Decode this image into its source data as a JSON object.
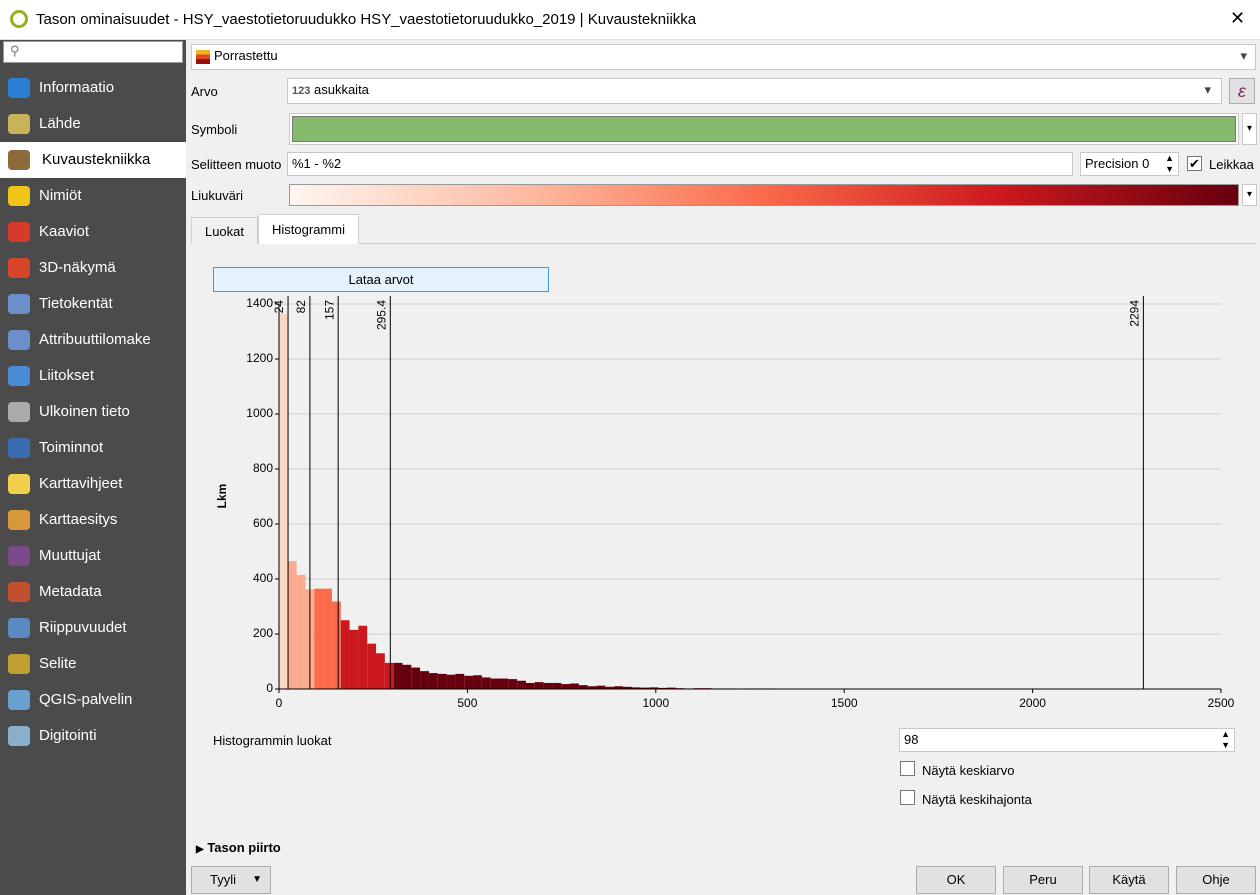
{
  "window_title": "Tason ominaisuudet - HSY_vaestotietoruudukko HSY_vaestotietoruudukko_2019 | Kuvaustekniikka",
  "sidebar": {
    "items": [
      "Informaatio",
      "Lähde",
      "Kuvaustekniikka",
      "Nimiöt",
      "Kaaviot",
      "3D-näkymä",
      "Tietokentät",
      "Attribuuttilomake",
      "Liitokset",
      "Ulkoinen tieto",
      "Toiminnot",
      "Karttavihjeet",
      "Karttaesitys",
      "Muuttujat",
      "Metadata",
      "Riippuvuudet",
      "Selite",
      "QGIS-palvelin",
      "Digitointi"
    ],
    "selected": 2
  },
  "renderer": "Porrastettu",
  "value_label": "Arvo",
  "value_field_type": "123",
  "value_field": "asukkaita",
  "symbol_label": "Symboli",
  "symbol_color": "#86bb6e",
  "legend_format_label": "Selitteen muoto",
  "legend_format": "%1 - %2",
  "precision": "Precision 0",
  "trim_label": "Leikkaa",
  "trim_checked": true,
  "ramp_label": "Liukuväri",
  "ramp_colors": [
    "#fff5f0",
    "#fcbba1",
    "#fb6a4a",
    "#cb181d",
    "#67000d"
  ],
  "tabs": {
    "items": [
      "Luokat",
      "Histogrammi"
    ],
    "active": 1
  },
  "load_button": "Lataa arvot",
  "chart_data": {
    "type": "histogram",
    "y_label": "Lkm",
    "bins": [
      0,
      23.4,
      46.8,
      70.2,
      93.6,
      117.0,
      140.4,
      163.9,
      187.3,
      210.7,
      234.1,
      257.5,
      280.9,
      304.3,
      327.7,
      351.1,
      374.5,
      397.9,
      421.3,
      444.8,
      468.2,
      491.6,
      515.0,
      538.4,
      561.8,
      585.2,
      608.6,
      632.0,
      655.4,
      678.8,
      702.2,
      725.6,
      749.1,
      772.5,
      795.9,
      819.3,
      842.7,
      866.1,
      889.5,
      912.9,
      936.3,
      959.7,
      983.1,
      1006.5,
      1029.9,
      1053.4,
      1076.8,
      1100.2,
      1123.6,
      1147.0,
      1170.4,
      1193.8,
      1217.2,
      1240.6,
      1264.0,
      1287.4,
      1310.8,
      1334.2,
      1357.7,
      1381.1,
      1404.5,
      1427.9,
      1451.3,
      1474.7,
      1498.1,
      1521.5,
      1544.9,
      1568.3,
      1591.7,
      1615.1,
      1638.6,
      1662.0,
      1685.4,
      1708.8,
      1732.2,
      1755.6,
      1779.0,
      1802.4,
      1825.8,
      1849.2,
      1872.6,
      1896.0,
      1919.4,
      1942.8,
      1966.3,
      1989.7,
      2013.1,
      2036.5,
      2059.9,
      2083.3,
      2106.7,
      2130.1,
      2153.5,
      2176.9,
      2200.3,
      2223.7,
      2247.1,
      2270.5,
      2294
    ],
    "values": [
      1365,
      465,
      415,
      362,
      365,
      365,
      318,
      250,
      215,
      230,
      165,
      130,
      95,
      95,
      88,
      78,
      65,
      58,
      55,
      52,
      55,
      48,
      50,
      42,
      38,
      38,
      36,
      30,
      22,
      25,
      22,
      22,
      18,
      20,
      14,
      10,
      12,
      8,
      10,
      8,
      6,
      5,
      6,
      4,
      5,
      3,
      2,
      3,
      3,
      2,
      2,
      2,
      1,
      2,
      2,
      2,
      1,
      1,
      1,
      0,
      0,
      1,
      0,
      0,
      1,
      0,
      0,
      0,
      1,
      0,
      1,
      0,
      0,
      1,
      0,
      1,
      0,
      0,
      0,
      0,
      1,
      0,
      1,
      0,
      0,
      1,
      0,
      0,
      0,
      1,
      1,
      0,
      0,
      1,
      0,
      0,
      0,
      1
    ],
    "xlim": [
      0,
      2500
    ],
    "xticks": [
      0,
      500,
      1000,
      1500,
      2000,
      2500
    ],
    "ylim": [
      0,
      1400
    ],
    "yticks": [
      0,
      200,
      400,
      600,
      800,
      1000,
      1200,
      1400
    ],
    "grid": true,
    "class_breaks": [
      24,
      82,
      157,
      295.4,
      2294
    ],
    "class_colors": [
      "#fcd5c4",
      "#fcab8f",
      "#fb6a4a",
      "#cb181d",
      "#67000d"
    ]
  },
  "bins_label": "Histogrammin luokat",
  "bins_count": 98,
  "show_mean": "Näytä keskiarvo",
  "show_stddev": "Näytä keskihajonta",
  "section": "Tason piirto",
  "style_button": "Tyyli",
  "buttons": [
    "OK",
    "Peru",
    "Käytä",
    "Ohje"
  ]
}
